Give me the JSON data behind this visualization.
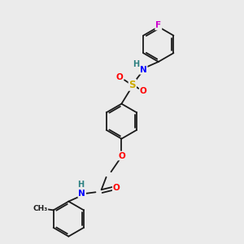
{
  "bg_color": "#ebebeb",
  "bond_color": "#1a1a1a",
  "atom_colors": {
    "N": "#0000ff",
    "O": "#ff0000",
    "S": "#ccaa00",
    "F": "#cc00cc",
    "H": "#2d8080",
    "C": "#1a1a1a"
  },
  "figsize": [
    3.0,
    3.0
  ],
  "dpi": 100,
  "xlim": [
    0,
    10
  ],
  "ylim": [
    0,
    10
  ]
}
